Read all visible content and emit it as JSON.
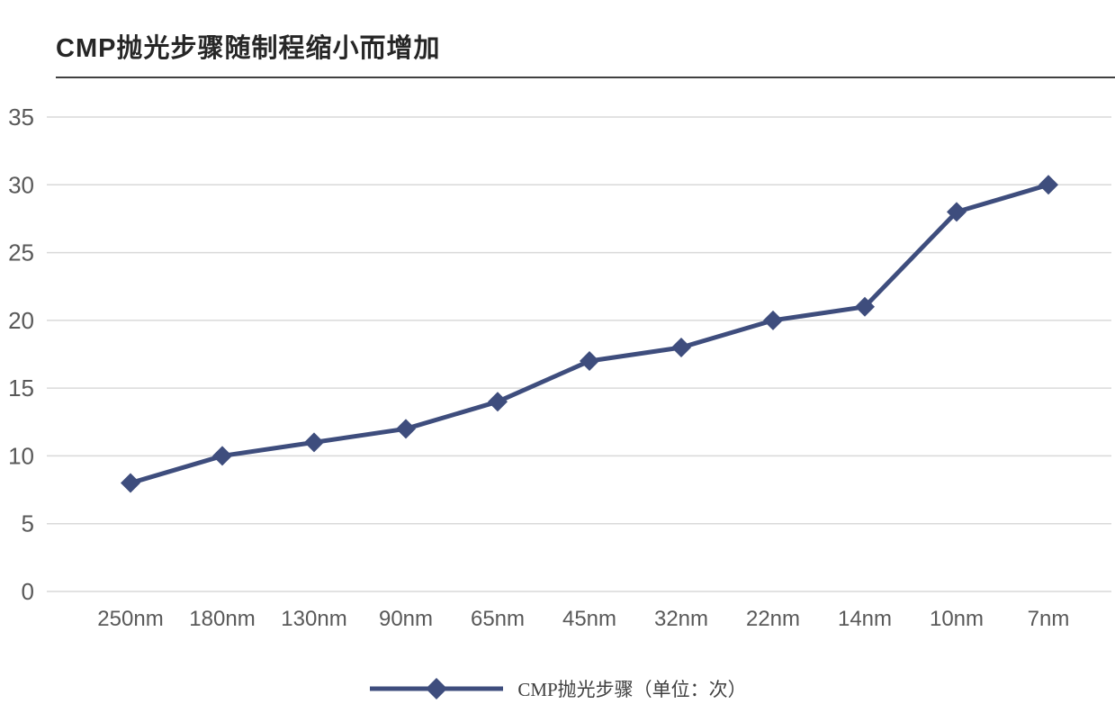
{
  "title": "CMP抛光步骤随制程缩小而增加",
  "legend": {
    "label": "CMP抛光步骤（单位：次）"
  },
  "chart_data": {
    "type": "line",
    "title": "CMP抛光步骤随制程缩小而增加",
    "categories": [
      "250nm",
      "180nm",
      "130nm",
      "90nm",
      "65nm",
      "45nm",
      "32nm",
      "22nm",
      "14nm",
      "10nm",
      "7nm"
    ],
    "series": [
      {
        "name": "CMP抛光步骤（单位：次）",
        "values": [
          8,
          10,
          11,
          12,
          14,
          17,
          18,
          20,
          21,
          28,
          30
        ]
      }
    ],
    "xlabel": "",
    "ylabel": "",
    "ylim": [
      0,
      35
    ],
    "ytick_step": 5,
    "yticks": [
      0,
      5,
      10,
      15,
      20,
      25,
      30,
      35
    ],
    "grid": "horizontal",
    "marker": "diamond",
    "legend_position": "bottom",
    "colors": {
      "series": "#3E4D7D",
      "gridline": "#D9D9D9",
      "axis_label": "#595959",
      "title": "#262626",
      "title_rule": "#404040"
    }
  }
}
